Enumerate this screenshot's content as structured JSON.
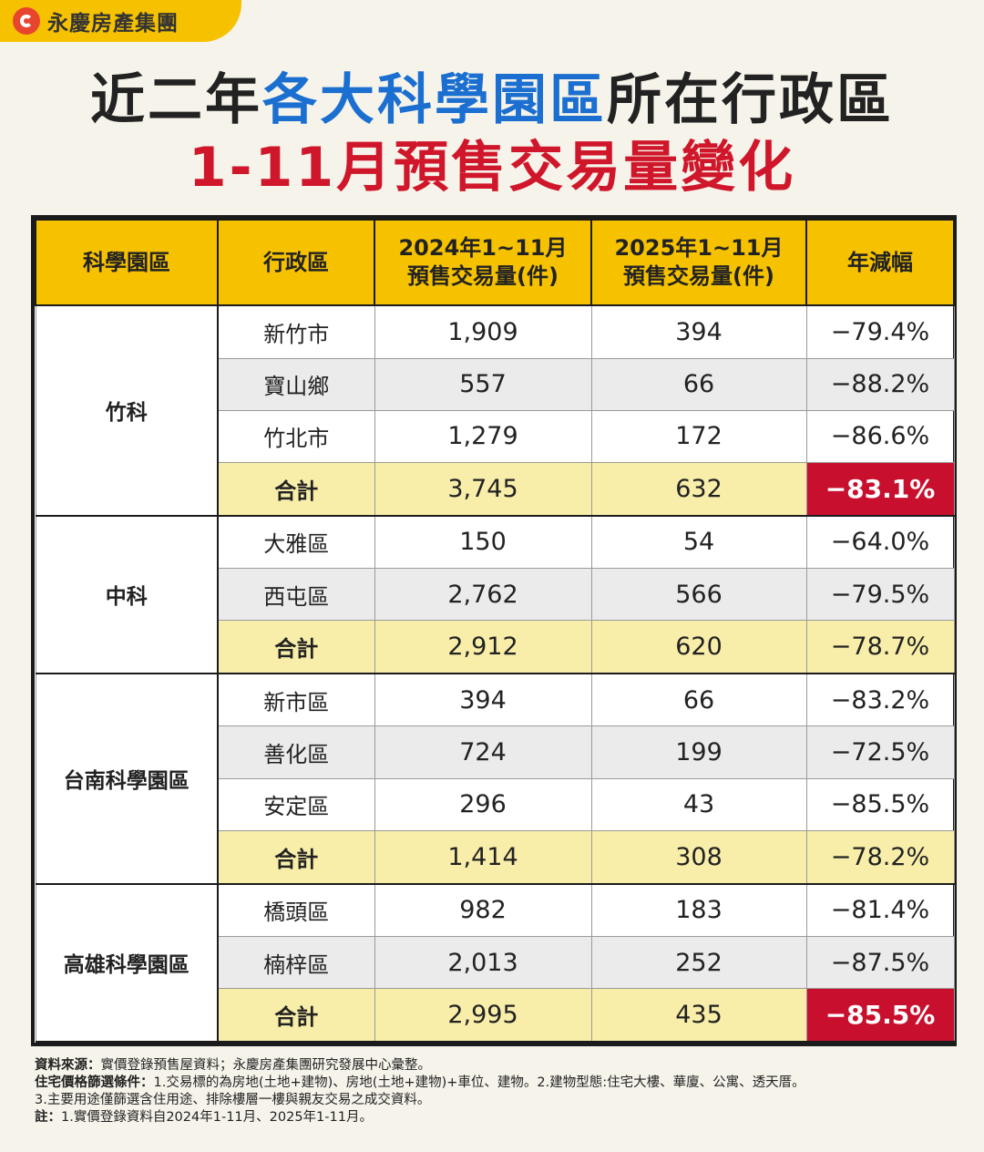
{
  "brand": {
    "name": "永慶房產集團"
  },
  "title": {
    "line1_a": "近二年",
    "line1_b": "各大科學園區",
    "line1_c": "所在行政區",
    "line2": "1-11月預售交易量變化"
  },
  "table": {
    "headers": [
      "科學園區",
      "行政區",
      "2024年1~11月\n預售交易量(件)",
      "2025年1~11月\n預售交易量(件)",
      "年減幅"
    ],
    "header_2024_a": "2024年1~11月",
    "header_2024_b": "預售交易量(件)",
    "header_2025_a": "2025年1~11月",
    "header_2025_b": "預售交易量(件)",
    "parks": [
      {
        "name": "竹科",
        "rows": [
          {
            "district": "新竹市",
            "y2024": "1,909",
            "y2025": "394",
            "change": "−79.4%"
          },
          {
            "district": "寶山鄉",
            "y2024": "557",
            "y2025": "66",
            "change": "−88.2%"
          },
          {
            "district": "竹北市",
            "y2024": "1,279",
            "y2025": "172",
            "change": "−86.6%"
          },
          {
            "district": "合計",
            "y2024": "3,745",
            "y2025": "632",
            "change": "−83.1%"
          }
        ]
      },
      {
        "name": "中科",
        "rows": [
          {
            "district": "大雅區",
            "y2024": "150",
            "y2025": "54",
            "change": "−64.0%"
          },
          {
            "district": "西屯區",
            "y2024": "2,762",
            "y2025": "566",
            "change": "−79.5%"
          },
          {
            "district": "合計",
            "y2024": "2,912",
            "y2025": "620",
            "change": "−78.7%"
          }
        ]
      },
      {
        "name": "台南科學園區",
        "rows": [
          {
            "district": "新市區",
            "y2024": "394",
            "y2025": "66",
            "change": "−83.2%"
          },
          {
            "district": "善化區",
            "y2024": "724",
            "y2025": "199",
            "change": "−72.5%"
          },
          {
            "district": "安定區",
            "y2024": "296",
            "y2025": "43",
            "change": "−85.5%"
          },
          {
            "district": "合計",
            "y2024": "1,414",
            "y2025": "308",
            "change": "−78.2%"
          }
        ]
      },
      {
        "name": "高雄科學園區",
        "rows": [
          {
            "district": "橋頭區",
            "y2024": "982",
            "y2025": "183",
            "change": "−81.4%"
          },
          {
            "district": "楠梓區",
            "y2024": "2,013",
            "y2025": "252",
            "change": "−87.5%"
          },
          {
            "district": "合計",
            "y2024": "2,995",
            "y2025": "435",
            "change": "−85.5%"
          }
        ]
      }
    ]
  },
  "notes": {
    "source_label": "資料來源：",
    "source_text": "實價登錄預售屋資料；永慶房產集團研究發展中心彙整。",
    "filter_label": "住宅價格篩選條件：",
    "filter_text": "1.交易標的為房地(土地+建物)、房地(土地+建物)+車位、建物。2.建物型態:住宅大樓、華廈、公寓、透天厝。",
    "filter_text2": "3.主要用途僅篩選含住用途、排除樓層一樓與親友交易之成交資料。",
    "note_label": "註：",
    "note_text": "1.實價登錄資料自2024年1-11月、2025年1-11月。"
  },
  "colors": {
    "yellow": "#f6c200",
    "highlight_red": "#c8102e",
    "title_blue": "#1a6fd1",
    "title_red": "#d0162a"
  }
}
